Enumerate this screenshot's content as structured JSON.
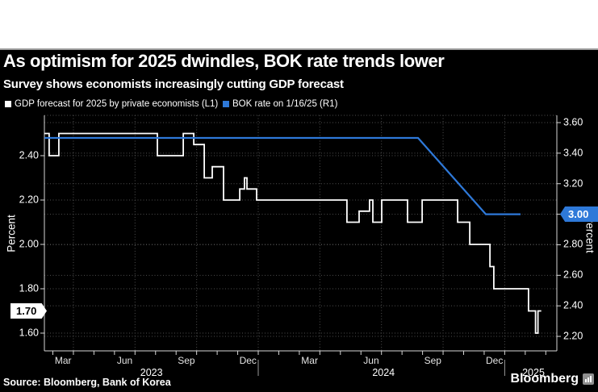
{
  "header": {
    "title": "As optimism for 2025 dwindles, BOK rate trends lower",
    "subtitle": "Survey shows economists increasingly cutting GDP forecast"
  },
  "legend": {
    "items": [
      {
        "label": "GDP forecast for 2025 by private economists (L1)",
        "color": "#ffffff"
      },
      {
        "label": "BOK rate on 1/16/25 (R1)",
        "color": "#2e79d9"
      }
    ]
  },
  "badges": {
    "gdp_last": "1.70",
    "bok_last": "3.00"
  },
  "footer": {
    "source": "Source: Bloomberg, Bank of Korea",
    "brand": "Bloomberg"
  },
  "colors": {
    "background": "#000000",
    "gdp_line": "#ffffff",
    "bok_line": "#2e79d9",
    "grid": "#4f4f4f",
    "axis": "#d6d6d6",
    "badge_left_bg": "#ffffff",
    "badge_right_bg": "#2e79d9"
  },
  "chart_data": {
    "type": "line",
    "title": "As optimism for 2025 dwindles, BOK rate trends lower",
    "subtitle": "Survey shows economists increasingly cutting GDP forecast",
    "grid": "dotted, both y-axes and quarterly x boundaries",
    "legend_position": "top-left, above plot",
    "x_axis": {
      "unit": "months since 2023-01-01",
      "visible_range": [
        1.6,
        26.5
      ],
      "month_labels": [
        {
          "label": "Mar",
          "t": 2.5
        },
        {
          "label": "Jun",
          "t": 5.5
        },
        {
          "label": "Sep",
          "t": 8.5
        },
        {
          "label": "Dec",
          "t": 11.5
        },
        {
          "label": "Mar",
          "t": 14.5
        },
        {
          "label": "Jun",
          "t": 17.5
        },
        {
          "label": "Sep",
          "t": 20.5
        },
        {
          "label": "Dec",
          "t": 23.5
        }
      ],
      "year_labels": [
        {
          "label": "2023",
          "t": 6.8
        },
        {
          "label": "2024",
          "t": 18.1
        },
        {
          "label": "2025",
          "t": 25.4
        }
      ],
      "quarter_gridlines_t": [
        3,
        6,
        9,
        12,
        15,
        18,
        21,
        24
      ],
      "year_separators_t": [
        12,
        24
      ]
    },
    "left_axis": {
      "label": "Percent",
      "ticks": [
        2.4,
        2.2,
        2.0,
        1.8,
        1.6
      ],
      "callout": 1.7,
      "applies_to": "GDP forecast (L1)"
    },
    "right_axis": {
      "label": "Percent",
      "ticks": [
        3.6,
        3.4,
        3.2,
        3.0,
        2.8,
        2.6,
        2.4,
        2.2
      ],
      "callout": 3.0,
      "applies_to": "BOK rate (R1)"
    },
    "series": [
      {
        "name": "GDP forecast for 2025 by private economists (L1)",
        "axis": "left",
        "color": "#ffffff",
        "draw": "step",
        "points": [
          [
            1.59,
            2.5
          ],
          [
            1.82,
            2.4
          ],
          [
            2.29,
            2.5
          ],
          [
            7.09,
            2.4
          ],
          [
            8.35,
            2.5
          ],
          [
            8.86,
            2.45
          ],
          [
            9.37,
            2.3
          ],
          [
            9.76,
            2.35
          ],
          [
            10.31,
            2.2
          ],
          [
            11.1,
            2.25
          ],
          [
            11.33,
            2.3
          ],
          [
            11.45,
            2.25
          ],
          [
            11.92,
            2.2
          ],
          [
            16.32,
            2.1
          ],
          [
            16.91,
            2.15
          ],
          [
            17.42,
            2.2
          ],
          [
            17.58,
            2.1
          ],
          [
            18.01,
            2.2
          ],
          [
            19.27,
            2.1
          ],
          [
            19.98,
            2.2
          ],
          [
            21.71,
            2.1
          ],
          [
            22.3,
            2.0
          ],
          [
            23.28,
            1.9
          ],
          [
            23.47,
            1.8
          ],
          [
            25.16,
            1.7
          ],
          [
            25.5,
            1.6
          ],
          [
            25.62,
            1.7
          ]
        ],
        "end_t": 25.78,
        "last_value": 1.7
      },
      {
        "name": "BOK rate on 1/16/25 (R1)",
        "axis": "right",
        "color": "#2e79d9",
        "draw": "linear",
        "points": [
          [
            1.59,
            3.5
          ],
          [
            19.78,
            3.5
          ],
          [
            23.08,
            3.0
          ],
          [
            24.77,
            3.0
          ]
        ],
        "last_value": 3.0
      }
    ]
  }
}
